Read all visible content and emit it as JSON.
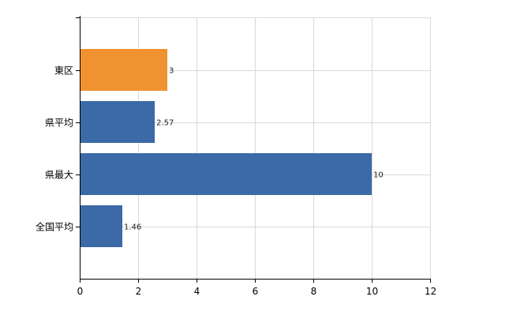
{
  "chart_data": {
    "type": "bar",
    "orientation": "horizontal",
    "categories": [
      "東区",
      "県平均",
      "県最大",
      "全国平均"
    ],
    "values": [
      3,
      2.57,
      10,
      1.46
    ],
    "value_labels": [
      "3",
      "2.57",
      "10",
      "1.46"
    ],
    "highlight_index": 0,
    "colors": {
      "highlight": "#f0922f",
      "default": "#3b6aa6",
      "grid": "#d9d9d9",
      "axis": "#000000"
    },
    "xlim": [
      0,
      12
    ],
    "x_ticks": [
      0,
      2,
      4,
      6,
      8,
      10,
      12
    ],
    "title": "",
    "xlabel": "",
    "ylabel": "",
    "grid": true,
    "legend": "none"
  }
}
